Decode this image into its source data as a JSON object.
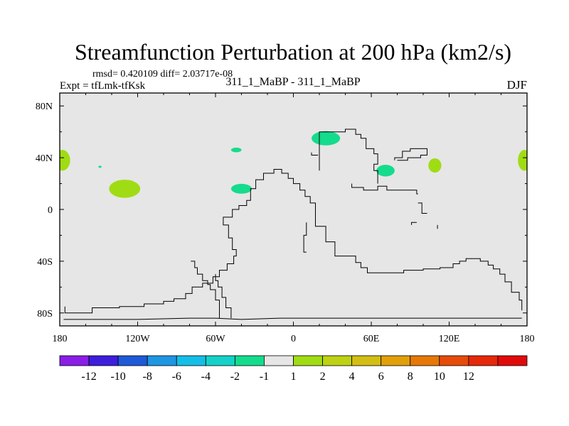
{
  "chart_data": {
    "type": "heatmap",
    "title": "Streamfunction Perturbation at 200 hPa (km2/s)",
    "stats": "rmsd= 0.420109 diff= 2.03717e-08",
    "experiment": "Expt = tfLmk-tfKsk",
    "subtitle": "311_1_MaBP - 311_1_MaBP",
    "season": "DJF",
    "x_range": [
      -180,
      180
    ],
    "y_range": [
      -90,
      90
    ],
    "x_ticks": [
      {
        "value": -180,
        "label": "180"
      },
      {
        "value": -120,
        "label": "120W"
      },
      {
        "value": -60,
        "label": "60W"
      },
      {
        "value": 0,
        "label": "0"
      },
      {
        "value": 60,
        "label": "60E"
      },
      {
        "value": 120,
        "label": "120E"
      },
      {
        "value": 180,
        "label": "180"
      }
    ],
    "y_ticks": [
      {
        "value": 80,
        "label": "80N"
      },
      {
        "value": 40,
        "label": "40N"
      },
      {
        "value": 0,
        "label": "0"
      },
      {
        "value": -40,
        "label": "40S"
      },
      {
        "value": -80,
        "label": "80S"
      }
    ],
    "missing_color": "#e6e6e6",
    "colorbar": {
      "colors": [
        "#8a1ee6",
        "#3c1edc",
        "#1e5ad7",
        "#1e96e1",
        "#14bee6",
        "#14d2c8",
        "#14dc8c",
        "#e6e6e6",
        "#a0dc14",
        "#bed214",
        "#d2be14",
        "#e1a00a",
        "#e67808",
        "#e64b0a",
        "#e6280a",
        "#e10a0a"
      ],
      "labels": [
        "-12",
        "-10",
        "-8",
        "-6",
        "-4",
        "-2",
        "-1",
        "1",
        "2",
        "4",
        "6",
        "8",
        "10",
        "12"
      ]
    },
    "anomalies": [
      {
        "lon": -178,
        "lat": 38,
        "rlon": 6,
        "rlat": 8,
        "color": "#a0dc14"
      },
      {
        "lon": 178,
        "lat": 38,
        "rlon": 5,
        "rlat": 8,
        "color": "#a0dc14"
      },
      {
        "lon": -130,
        "lat": 16,
        "rlon": 12,
        "rlat": 7,
        "color": "#a0dc14"
      },
      {
        "lon": -149,
        "lat": 33,
        "rlon": 1.2,
        "rlat": 0.8,
        "color": "#14dc8c"
      },
      {
        "lon": -44,
        "lat": 46,
        "rlon": 4,
        "rlat": 1.8,
        "color": "#14dc8c"
      },
      {
        "lon": -40,
        "lat": 16,
        "rlon": 8,
        "rlat": 3.8,
        "color": "#14dc8c"
      },
      {
        "lon": 25,
        "lat": 55,
        "rlon": 11,
        "rlat": 5.5,
        "color": "#14dc8c"
      },
      {
        "lon": 71,
        "lat": 30,
        "rlon": 7,
        "rlat": 4.5,
        "color": "#14dc8c"
      },
      {
        "lon": 109,
        "lat": 34,
        "rlon": 5,
        "rlat": 5.5,
        "color": "#a0dc14"
      }
    ],
    "coastline": [
      [
        [
          -176,
          -75
        ],
        [
          -176,
          -80
        ],
        [
          -155,
          -80
        ],
        [
          -155,
          -76
        ],
        [
          -134,
          -76
        ],
        [
          -134,
          -75
        ],
        [
          -115,
          -75
        ],
        [
          -115,
          -73
        ],
        [
          -100,
          -73
        ],
        [
          -100,
          -71
        ],
        [
          -92,
          -71
        ],
        [
          -92,
          -69
        ],
        [
          -83,
          -69
        ],
        [
          -83,
          -65
        ],
        [
          -78,
          -65
        ],
        [
          -78,
          -60
        ],
        [
          -70,
          -60
        ],
        [
          -70,
          -57
        ],
        [
          -62,
          -57
        ],
        [
          -62,
          -52
        ],
        [
          -57,
          -52
        ],
        [
          -57,
          -47
        ],
        [
          -51,
          -47
        ],
        [
          -51,
          -42
        ],
        [
          -46,
          -42
        ],
        [
          -46,
          -36
        ],
        [
          -44,
          -36
        ],
        [
          -44,
          -31
        ],
        [
          -47,
          -31
        ],
        [
          -47,
          -22
        ],
        [
          -50,
          -22
        ],
        [
          -50,
          -12
        ],
        [
          -54,
          -12
        ],
        [
          -54,
          -6
        ],
        [
          -47,
          -6
        ],
        [
          -47,
          0
        ],
        [
          -42,
          0
        ],
        [
          -42,
          3
        ],
        [
          -36,
          3
        ],
        [
          -36,
          7
        ],
        [
          -33,
          7
        ],
        [
          -33,
          16
        ],
        [
          -29,
          16
        ],
        [
          -29,
          23
        ],
        [
          -23,
          23
        ],
        [
          -23,
          28
        ],
        [
          -15,
          28
        ],
        [
          -15,
          31
        ],
        [
          -9,
          31
        ],
        [
          -9,
          28
        ],
        [
          -4,
          28
        ],
        [
          -4,
          24
        ],
        [
          0,
          24
        ],
        [
          0,
          20
        ],
        [
          5,
          20
        ],
        [
          5,
          15
        ],
        [
          9,
          15
        ],
        [
          9,
          10
        ],
        [
          13,
          10
        ],
        [
          13,
          5
        ],
        [
          17,
          5
        ],
        [
          17,
          -13
        ],
        [
          25,
          -13
        ],
        [
          25,
          -25
        ],
        [
          32,
          -25
        ],
        [
          32,
          -36
        ],
        [
          48,
          -36
        ],
        [
          48,
          -41
        ],
        [
          52,
          -41
        ],
        [
          52,
          -45
        ],
        [
          57,
          -45
        ],
        [
          57,
          -49
        ],
        [
          85,
          -49
        ],
        [
          85,
          -47
        ],
        [
          100,
          -47
        ],
        [
          100,
          -46
        ],
        [
          113,
          -46
        ],
        [
          113,
          -45
        ],
        [
          123,
          -45
        ],
        [
          123,
          -42
        ],
        [
          128,
          -42
        ],
        [
          128,
          -40
        ],
        [
          133,
          -40
        ],
        [
          133,
          -38
        ],
        [
          144,
          -38
        ],
        [
          144,
          -40
        ],
        [
          150,
          -40
        ],
        [
          150,
          -43
        ],
        [
          154,
          -43
        ],
        [
          154,
          -46
        ],
        [
          159,
          -46
        ],
        [
          159,
          -50
        ],
        [
          163,
          -50
        ],
        [
          163,
          -56
        ],
        [
          168,
          -56
        ],
        [
          168,
          -64
        ],
        [
          174,
          -64
        ],
        [
          174,
          -70
        ],
        [
          176,
          -70
        ],
        [
          176,
          -78
        ]
      ],
      [
        [
          -177,
          -85
        ],
        [
          -155,
          -85
        ],
        [
          -120,
          -85
        ],
        [
          -80,
          -84
        ],
        [
          -60,
          -84
        ],
        [
          -40,
          -85
        ],
        [
          -10,
          -84
        ],
        [
          30,
          -84
        ],
        [
          80,
          -84
        ],
        [
          130,
          -84
        ],
        [
          176,
          -84
        ]
      ],
      [
        [
          -57,
          -84
        ],
        [
          -57,
          -70
        ],
        [
          -60,
          -70
        ],
        [
          -60,
          -62
        ],
        [
          -64,
          -62
        ],
        [
          -64,
          -58
        ],
        [
          -66,
          -58
        ],
        [
          -66,
          -55
        ],
        [
          -70,
          -55
        ],
        [
          -70,
          -50
        ],
        [
          -74,
          -50
        ],
        [
          -74,
          -45
        ],
        [
          -76,
          -45
        ],
        [
          -76,
          -40
        ],
        [
          -79,
          -40
        ]
      ],
      [
        [
          -48,
          -84
        ],
        [
          -48,
          -76
        ],
        [
          -52,
          -76
        ],
        [
          -52,
          -68
        ],
        [
          -55,
          -68
        ],
        [
          -55,
          -60
        ],
        [
          -58,
          -60
        ],
        [
          -58,
          -55
        ],
        [
          -60,
          -55
        ],
        [
          -60,
          -50
        ]
      ],
      [
        [
          10,
          -33
        ],
        [
          8,
          -33
        ],
        [
          8,
          -20
        ],
        [
          10,
          -20
        ],
        [
          10,
          -10
        ]
      ],
      [
        [
          20,
          30
        ],
        [
          20,
          60
        ],
        [
          40,
          60
        ],
        [
          40,
          62
        ],
        [
          48,
          62
        ],
        [
          48,
          58
        ],
        [
          52,
          58
        ],
        [
          52,
          55
        ],
        [
          56,
          55
        ],
        [
          56,
          47
        ],
        [
          62,
          47
        ],
        [
          62,
          43
        ],
        [
          65,
          43
        ],
        [
          65,
          35
        ],
        [
          62,
          35
        ],
        [
          62,
          30
        ],
        [
          65,
          30
        ],
        [
          65,
          20
        ]
      ],
      [
        [
          14,
          44
        ],
        [
          14,
          42
        ],
        [
          19,
          42
        ]
      ],
      [
        [
          45,
          20
        ],
        [
          45,
          17
        ],
        [
          54,
          17
        ],
        [
          54,
          15
        ],
        [
          65,
          15
        ],
        [
          65,
          18
        ],
        [
          72,
          18
        ],
        [
          72,
          15
        ],
        [
          95,
          15
        ],
        [
          95,
          12
        ],
        [
          96,
          12
        ]
      ],
      [
        [
          78,
          38
        ],
        [
          78,
          40
        ],
        [
          84,
          40
        ],
        [
          84,
          45
        ],
        [
          90,
          45
        ],
        [
          90,
          47
        ],
        [
          103,
          47
        ],
        [
          103,
          42
        ],
        [
          98,
          42
        ],
        [
          98,
          40
        ],
        [
          88,
          40
        ],
        [
          88,
          38
        ],
        [
          80,
          38
        ]
      ],
      [
        [
          96,
          5
        ],
        [
          99,
          5
        ],
        [
          99,
          -3
        ],
        [
          103,
          -3
        ]
      ],
      [
        [
          91,
          -12
        ],
        [
          91,
          -10
        ],
        [
          95,
          -10
        ]
      ],
      [
        [
          111,
          -15
        ],
        [
          111,
          -12
        ]
      ]
    ]
  }
}
